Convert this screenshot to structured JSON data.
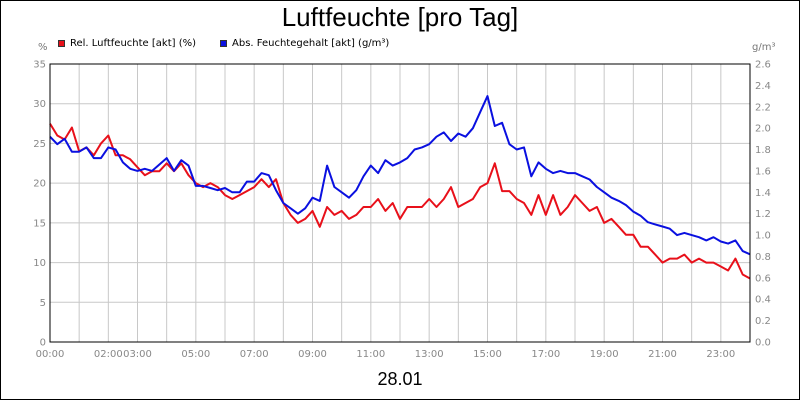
{
  "chart_data": {
    "type": "line",
    "title": "Luftfeuchte [pro Tag]",
    "xlabel": "28.01",
    "ylabel_left": "%",
    "ylabel_right": "g/m³",
    "x_ticks": [
      "00:00",
      "02:00",
      "03:00",
      "05:00",
      "07:00",
      "09:00",
      "11:00",
      "13:00",
      "15:00",
      "17:00",
      "19:00",
      "21:00",
      "23:00"
    ],
    "x_tick_hours": [
      0,
      2,
      3,
      5,
      7,
      9,
      11,
      13,
      15,
      17,
      19,
      21,
      23
    ],
    "xlim_hours": [
      0,
      24
    ],
    "ylim_left": [
      0,
      35
    ],
    "ylim_right": [
      0,
      2.6
    ],
    "y_ticks_left": [
      "0",
      "5",
      "10",
      "15",
      "20",
      "25",
      "30",
      "35"
    ],
    "y_ticks_right": [
      "0.0",
      "0.2",
      "0.4",
      "0.6",
      "0.8",
      "1.0",
      "1.2",
      "1.4",
      "1.6",
      "1.8",
      "2.0",
      "2.2",
      "2.4",
      "2.6"
    ],
    "grid": true,
    "legend_position": "top-left",
    "series": [
      {
        "name": "Rel. Luftfeuchte [akt] (%)",
        "axis": "left",
        "color": "#e8101a",
        "x": [
          0,
          0.25,
          0.5,
          0.75,
          1,
          1.25,
          1.5,
          1.75,
          2,
          2.25,
          2.5,
          2.75,
          3,
          3.25,
          3.5,
          3.75,
          4,
          4.25,
          4.5,
          4.75,
          5,
          5.25,
          5.5,
          5.75,
          6,
          6.25,
          6.5,
          6.75,
          7,
          7.25,
          7.5,
          7.75,
          8,
          8.25,
          8.5,
          8.75,
          9,
          9.25,
          9.5,
          9.75,
          10,
          10.25,
          10.5,
          10.75,
          11,
          11.25,
          11.5,
          11.75,
          12,
          12.25,
          12.5,
          12.75,
          13,
          13.25,
          13.5,
          13.75,
          14,
          14.25,
          14.5,
          14.75,
          15,
          15.25,
          15.5,
          15.75,
          16,
          16.25,
          16.5,
          16.75,
          17,
          17.25,
          17.5,
          17.75,
          18,
          18.25,
          18.5,
          18.75,
          19,
          19.25,
          19.5,
          19.75,
          20,
          20.25,
          20.5,
          20.75,
          21,
          21.25,
          21.5,
          21.75,
          22,
          22.25,
          22.5,
          22.75,
          23,
          23.25,
          23.5,
          23.75,
          24
        ],
        "values": [
          27.5,
          26,
          25.5,
          27,
          24,
          24.5,
          23.5,
          25,
          26,
          23.5,
          23.5,
          23,
          22,
          21,
          21.5,
          21.5,
          22.5,
          21.5,
          22.5,
          21,
          20,
          19.5,
          20,
          19.5,
          18.5,
          18,
          18.5,
          19,
          19.5,
          20.5,
          19.5,
          20.5,
          17.5,
          16,
          15,
          15.5,
          16.5,
          14.5,
          17,
          16,
          16.5,
          15.5,
          16,
          17,
          17,
          18,
          16.5,
          17.5,
          15.5,
          17,
          17,
          17,
          18,
          17,
          18,
          19.5,
          17,
          17.5,
          18,
          19.5,
          20,
          22.5,
          19,
          19,
          18,
          17.5,
          16,
          18.5,
          16,
          18.5,
          16,
          17,
          18.5,
          17.5,
          16.5,
          17,
          15,
          15.5,
          14.5,
          13.5,
          13.5,
          12,
          12,
          11,
          10,
          10.5,
          10.5,
          11,
          10,
          10.5,
          10,
          10,
          9.5,
          9,
          10.5,
          8.5,
          8
        ]
      },
      {
        "name": "Abs. Feuchtegehalt [akt] (g/m³)",
        "axis": "right",
        "color": "#0a10e0",
        "x": [
          0,
          0.25,
          0.5,
          0.75,
          1,
          1.25,
          1.5,
          1.75,
          2,
          2.25,
          2.5,
          2.75,
          3,
          3.25,
          3.5,
          3.75,
          4,
          4.25,
          4.5,
          4.75,
          5,
          5.25,
          5.5,
          5.75,
          6,
          6.25,
          6.5,
          6.75,
          7,
          7.25,
          7.5,
          7.75,
          8,
          8.25,
          8.5,
          8.75,
          9,
          9.25,
          9.5,
          9.75,
          10,
          10.25,
          10.5,
          10.75,
          11,
          11.25,
          11.5,
          11.75,
          12,
          12.25,
          12.5,
          12.75,
          13,
          13.25,
          13.5,
          13.75,
          14,
          14.25,
          14.5,
          14.75,
          15,
          15.25,
          15.5,
          15.75,
          16,
          16.25,
          16.5,
          16.75,
          17,
          17.25,
          17.5,
          17.75,
          18,
          18.25,
          18.5,
          18.75,
          19,
          19.25,
          19.5,
          19.75,
          20,
          20.25,
          20.5,
          20.75,
          21,
          21.25,
          21.5,
          21.75,
          22,
          22.25,
          22.5,
          22.75,
          23,
          23.25,
          23.5,
          23.75,
          24
        ],
        "values": [
          1.92,
          1.85,
          1.9,
          1.78,
          1.78,
          1.82,
          1.72,
          1.72,
          1.82,
          1.8,
          1.68,
          1.62,
          1.6,
          1.62,
          1.6,
          1.66,
          1.72,
          1.6,
          1.7,
          1.65,
          1.46,
          1.46,
          1.44,
          1.42,
          1.44,
          1.4,
          1.4,
          1.5,
          1.5,
          1.58,
          1.56,
          1.42,
          1.3,
          1.25,
          1.2,
          1.25,
          1.35,
          1.32,
          1.65,
          1.45,
          1.4,
          1.35,
          1.42,
          1.55,
          1.65,
          1.58,
          1.7,
          1.65,
          1.68,
          1.72,
          1.8,
          1.82,
          1.85,
          1.92,
          1.96,
          1.88,
          1.95,
          1.92,
          2.0,
          2.15,
          2.3,
          2.02,
          2.05,
          1.85,
          1.8,
          1.82,
          1.55,
          1.68,
          1.62,
          1.58,
          1.6,
          1.58,
          1.58,
          1.55,
          1.52,
          1.45,
          1.4,
          1.35,
          1.32,
          1.28,
          1.22,
          1.18,
          1.12,
          1.1,
          1.08,
          1.06,
          1.0,
          1.02,
          1.0,
          0.98,
          0.95,
          0.98,
          0.94,
          0.92,
          0.95,
          0.85,
          0.82
        ]
      }
    ]
  }
}
